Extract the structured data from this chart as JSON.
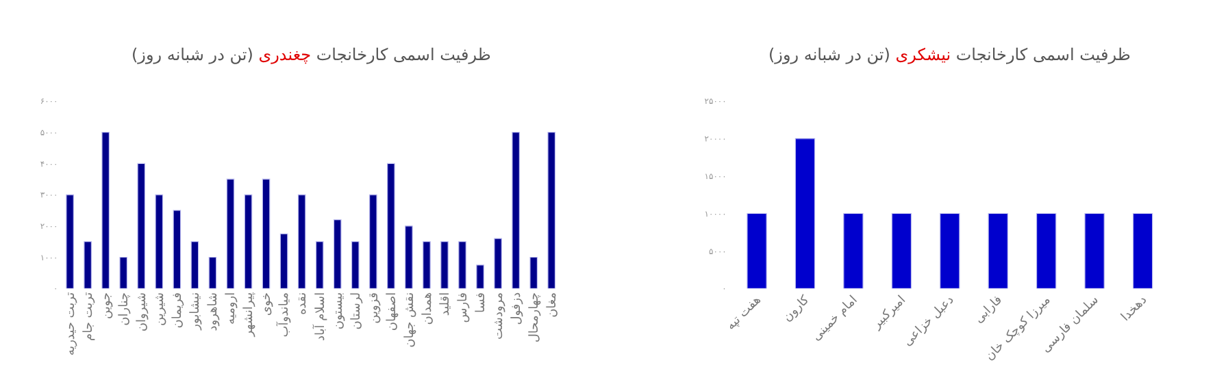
{
  "chart_data": [
    {
      "type": "bar",
      "title": "ظرفیت اسمی کارخانجات چغندری (تن در شبانه روز)",
      "categories": [
        "تربت حیدریه",
        "تربت جام",
        "جوین",
        "چناران",
        "شیروان",
        "شیرین",
        "فریمان",
        "نیشابور",
        "شاهرود",
        "ارومیه",
        "پیرانشهر",
        "خوی",
        "میاندوآب",
        "نقده",
        "اسلام آباد",
        "بیستون",
        "لرستان",
        "قزوین",
        "اصفهان",
        "نقش جهان",
        "همدان",
        "اقلید",
        "فارس",
        "فسا",
        "مرودشت",
        "دزفول",
        "چهارمحال",
        "مغان"
      ],
      "values": [
        3000,
        1500,
        5000,
        1000,
        4000,
        3000,
        2500,
        1500,
        1000,
        3500,
        3000,
        3500,
        1750,
        3000,
        1500,
        2200,
        1500,
        3000,
        4000,
        2000,
        1500,
        1500,
        1500,
        750,
        1600,
        5000,
        1000,
        5000
      ],
      "color": "#00008b",
      "ylim": [
        0,
        6000
      ],
      "yticks": [
        {
          "value": 0,
          "label": "۰"
        },
        {
          "value": 1000,
          "label": "۱۰۰۰"
        },
        {
          "value": 2000,
          "label": "۲۰۰۰"
        },
        {
          "value": 3000,
          "label": "۳۰۰۰"
        },
        {
          "value": 4000,
          "label": "۴۰۰۰"
        },
        {
          "value": 5000,
          "label": "۵۰۰۰"
        },
        {
          "value": 6000,
          "label": "۶۰۰۰"
        }
      ]
    },
    {
      "type": "bar",
      "title": "ظرفیت اسمی کارخانجات نیشکری (تن در شبانه روز)",
      "categories": [
        "هفت تپه",
        "کارون",
        "امام خمینی",
        "امیرکبیر",
        "دعبل خزاعی",
        "فارابی",
        "میرزا کوچک خان",
        "سلمان فارسی",
        "دهخدا"
      ],
      "values": [
        10000,
        20000,
        10000,
        10000,
        10000,
        10000,
        10000,
        10000,
        10000
      ],
      "color": "#0000cd",
      "ylim": [
        0,
        25000
      ],
      "yticks": [
        {
          "value": 0,
          "label": "۰"
        },
        {
          "value": 5000,
          "label": "۵۰۰۰"
        },
        {
          "value": 10000,
          "label": "۱۰۰۰۰"
        },
        {
          "value": 15000,
          "label": "۱۵۰۰۰"
        },
        {
          "value": 20000,
          "label": "۲۰۰۰۰"
        },
        {
          "value": 25000,
          "label": "۲۵۰۰۰"
        }
      ]
    }
  ]
}
